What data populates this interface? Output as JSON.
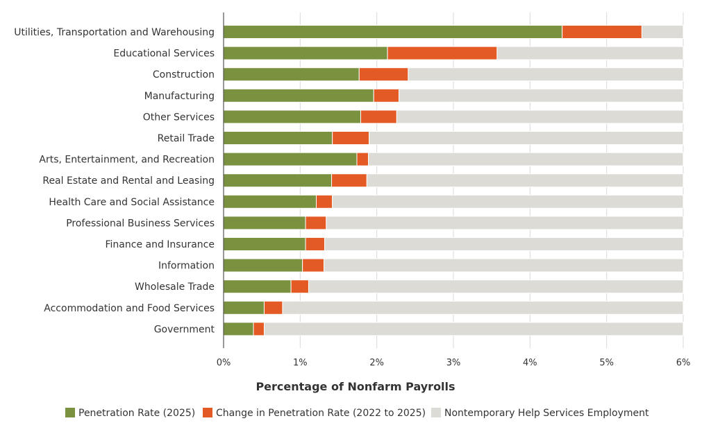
{
  "chart_data": {
    "type": "bar",
    "orientation": "horizontal",
    "stacked": true,
    "title": "",
    "xlabel": "Percentage of Nonfarm Payrolls",
    "ylabel": "",
    "xlim": [
      0,
      6
    ],
    "x_ticks": [
      0,
      1,
      2,
      3,
      4,
      5,
      6
    ],
    "x_tick_labels": [
      "0%",
      "1%",
      "2%",
      "3%",
      "4%",
      "5%",
      "6%"
    ],
    "grid": true,
    "legend_position": "bottom",
    "categories": [
      "Utilities, Transportation and Warehousing",
      "Educational Services",
      "Construction",
      "Manufacturing",
      "Other Services",
      "Retail Trade",
      "Arts, Entertainment, and Recreation",
      "Real Estate and Rental and Leasing",
      "Health Care and Social Assistance",
      "Professional Business Services",
      "Finance and Insurance",
      "Information",
      "Wholesale Trade",
      "Accommodation and Food Services",
      "Government"
    ],
    "series": [
      {
        "name": "Penetration Rate (2025)",
        "color": "#7a9140",
        "values": [
          4.42,
          2.14,
          1.77,
          1.96,
          1.79,
          1.42,
          1.74,
          1.41,
          1.21,
          1.07,
          1.07,
          1.03,
          0.88,
          0.53,
          0.39
        ]
      },
      {
        "name": "Change in Penetration Rate (2022 to 2025)",
        "color": "#e35a24",
        "values": [
          1.04,
          1.43,
          0.64,
          0.33,
          0.47,
          0.48,
          0.15,
          0.46,
          0.21,
          0.27,
          0.25,
          0.28,
          0.23,
          0.24,
          0.14
        ]
      },
      {
        "name": "Nontemporary Help Services Employment",
        "color": "#dddbd5",
        "values": [
          0.54,
          2.43,
          3.59,
          3.71,
          3.74,
          4.1,
          4.11,
          4.13,
          4.58,
          4.66,
          4.68,
          4.69,
          4.89,
          5.23,
          5.47
        ]
      }
    ]
  }
}
